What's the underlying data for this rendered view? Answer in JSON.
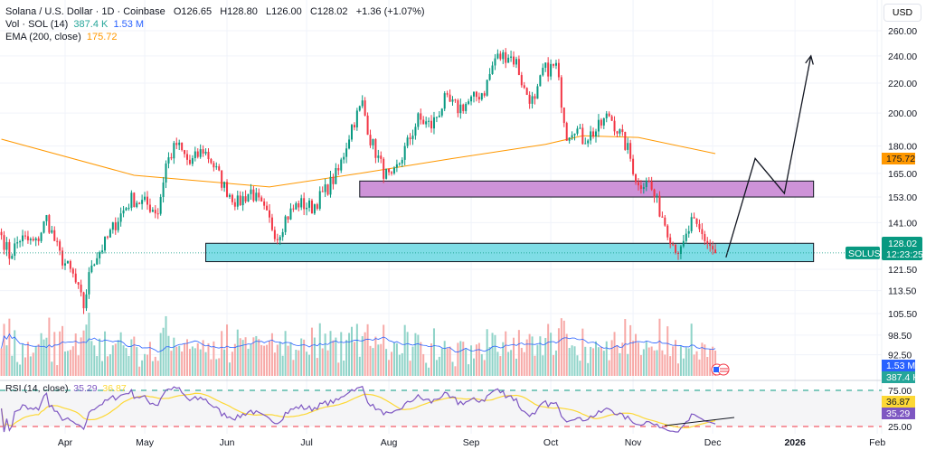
{
  "legend": {
    "symbol": "Solana / U.S. Dollar · 1D · Coinbase",
    "open": "O126.65",
    "high": "H128.80",
    "low": "L126.00",
    "close": "C128.02",
    "change": "+1.36 (+1.07%)",
    "vol_label": "Vol · SOL (14)",
    "vol_value": "387.4 K",
    "vol_ma": "1.53 M",
    "ema_label": "EMA (200, close)",
    "ema_value": "175.72",
    "rsi_label": "RSI (14, close)",
    "rsi_value": "35.29",
    "rsi_ma": "36.87"
  },
  "currency": "USD",
  "colors": {
    "up": "#089981",
    "down": "#f23645",
    "ema": "#ff9800",
    "vol_ma": "#2962ff",
    "rsi": "#7e57c2",
    "rsi_ma": "#fdd835",
    "zone_support": "#7fdde6",
    "zone_resistance": "#ce93d8"
  },
  "chart_data": {
    "type": "candlestick",
    "interval": "1D",
    "y_scale": "log",
    "price_ticks": [
      "260.00",
      "240.00",
      "220.00",
      "200.00",
      "180.00",
      "165.00",
      "153.00",
      "141.00",
      "121.50",
      "113.50",
      "105.50",
      "98.50",
      "92.50"
    ],
    "time_ticks": [
      {
        "label": "Apr",
        "date": "2025-04-01"
      },
      {
        "label": "May",
        "date": "2025-05-01"
      },
      {
        "label": "Jun",
        "date": "2025-06-01"
      },
      {
        "label": "Jul",
        "date": "2025-07-01"
      },
      {
        "label": "Aug",
        "date": "2025-08-01"
      },
      {
        "label": "Sep",
        "date": "2025-09-01"
      },
      {
        "label": "Oct",
        "date": "2025-10-01"
      },
      {
        "label": "Nov",
        "date": "2025-11-01"
      },
      {
        "label": "Dec",
        "date": "2025-12-01"
      },
      {
        "label": "2026",
        "date": "2026-01-01"
      },
      {
        "label": "Feb",
        "date": "2026-02-01"
      }
    ],
    "closes": [
      [
        "2025-03-08",
        135.5
      ],
      [
        "2025-03-11",
        127
      ],
      [
        "2025-03-15",
        134
      ],
      [
        "2025-03-21",
        132
      ],
      [
        "2025-03-25",
        143
      ],
      [
        "2025-03-30",
        127
      ],
      [
        "2025-04-04",
        119
      ],
      [
        "2025-04-08",
        108
      ],
      [
        "2025-04-11",
        124
      ],
      [
        "2025-04-16",
        132
      ],
      [
        "2025-04-21",
        143
      ],
      [
        "2025-04-26",
        152
      ],
      [
        "2025-05-01",
        150
      ],
      [
        "2025-05-06",
        146
      ],
      [
        "2025-05-09",
        170
      ],
      [
        "2025-05-13",
        181
      ],
      [
        "2025-05-18",
        170
      ],
      [
        "2025-05-23",
        178
      ],
      [
        "2025-05-26",
        172
      ],
      [
        "2025-05-31",
        158
      ],
      [
        "2025-06-05",
        150
      ],
      [
        "2025-06-10",
        156
      ],
      [
        "2025-06-15",
        146
      ],
      [
        "2025-06-20",
        135
      ],
      [
        "2025-06-23",
        143
      ],
      [
        "2025-06-28",
        150
      ],
      [
        "2025-07-03",
        148
      ],
      [
        "2025-07-08",
        156
      ],
      [
        "2025-07-13",
        166
      ],
      [
        "2025-07-18",
        192
      ],
      [
        "2025-07-22",
        206
      ],
      [
        "2025-07-25",
        184
      ],
      [
        "2025-07-30",
        166
      ],
      [
        "2025-08-02",
        161
      ],
      [
        "2025-08-07",
        178
      ],
      [
        "2025-08-12",
        196
      ],
      [
        "2025-08-17",
        192
      ],
      [
        "2025-08-22",
        208
      ],
      [
        "2025-08-27",
        203
      ],
      [
        "2025-09-01",
        208
      ],
      [
        "2025-09-06",
        215
      ],
      [
        "2025-09-10",
        238
      ],
      [
        "2025-09-15",
        241
      ],
      [
        "2025-09-18",
        235
      ],
      [
        "2025-09-21",
        215
      ],
      [
        "2025-09-25",
        206
      ],
      [
        "2025-09-28",
        229
      ],
      [
        "2025-10-03",
        232
      ],
      [
        "2025-10-07",
        187
      ],
      [
        "2025-10-10",
        192
      ],
      [
        "2025-10-13",
        184
      ],
      [
        "2025-10-18",
        189
      ],
      [
        "2025-10-23",
        199
      ],
      [
        "2025-10-27",
        187
      ],
      [
        "2025-10-30",
        178
      ],
      [
        "2025-11-03",
        158
      ],
      [
        "2025-11-06",
        163
      ],
      [
        "2025-11-09",
        153
      ],
      [
        "2025-11-13",
        141
      ],
      [
        "2025-11-16",
        132
      ],
      [
        "2025-11-19",
        128
      ],
      [
        "2025-11-23",
        141
      ],
      [
        "2025-11-26",
        137
      ],
      [
        "2025-12-02",
        128.02
      ]
    ],
    "ema200": [
      [
        "2025-03-08",
        184
      ],
      [
        "2025-04-27",
        164
      ],
      [
        "2025-06-17",
        158
      ],
      [
        "2025-07-21",
        165
      ],
      [
        "2025-08-25",
        173
      ],
      [
        "2025-09-29",
        181
      ],
      [
        "2025-10-13",
        186
      ],
      [
        "2025-11-03",
        185
      ],
      [
        "2025-12-02",
        175.72
      ]
    ],
    "zones": [
      {
        "name": "resistance",
        "from": "2025-07-21",
        "to": "2026-01-08",
        "low": 153,
        "high": 161
      },
      {
        "name": "support",
        "from": "2025-05-24",
        "to": "2026-01-08",
        "low": 124.5,
        "high": 132
      }
    ],
    "projection": [
      [
        "2025-12-06",
        126.2
      ],
      [
        "2025-12-17",
        173
      ],
      [
        "2025-12-28",
        154.8
      ],
      [
        "2026-01-07",
        240
      ]
    ],
    "rsi_levels": [
      75,
      25
    ],
    "rsi_level_labels": [
      "75.00",
      "25.00"
    ],
    "last_price": {
      "symbol": "SOLUSD",
      "price": "128.02",
      "countdown": "12:23:25"
    }
  }
}
